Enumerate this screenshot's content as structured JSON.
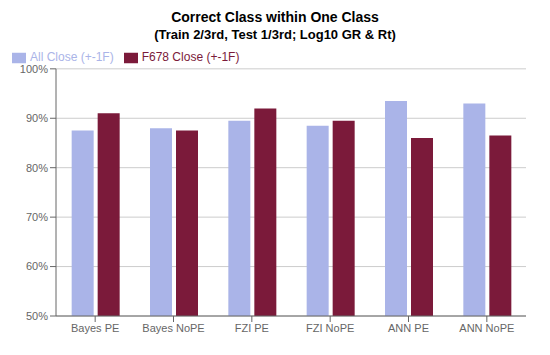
{
  "chart_data": {
    "type": "bar",
    "title": "Correct Class within One Class",
    "subtitle": "(Train 2/3rd, Test 1/3rd; Log10 GR & Rt)",
    "categories": [
      "Bayes PE",
      "Bayes NoPE",
      "FZI PE",
      "FZI NoPE",
      "ANN PE",
      "ANN NoPE"
    ],
    "series": [
      {
        "name": "All Close (+-1F)",
        "color": "#aab4e8",
        "values": [
          87.5,
          88.0,
          89.5,
          88.5,
          93.5,
          93.0
        ]
      },
      {
        "name": "F678 Close (+-1F)",
        "color": "#7b1a3a",
        "values": [
          91.0,
          87.5,
          92.0,
          89.5,
          86.0,
          86.5
        ]
      }
    ],
    "ylim": [
      50,
      100
    ],
    "yticks": [
      {
        "value": 50,
        "label": "50%"
      },
      {
        "value": 60,
        "label": "60%"
      },
      {
        "value": 70,
        "label": "70%"
      },
      {
        "value": 80,
        "label": "80%"
      },
      {
        "value": 90,
        "label": "90%"
      },
      {
        "value": 100,
        "label": "100%"
      }
    ],
    "grid": true,
    "legend": "upper left"
  }
}
